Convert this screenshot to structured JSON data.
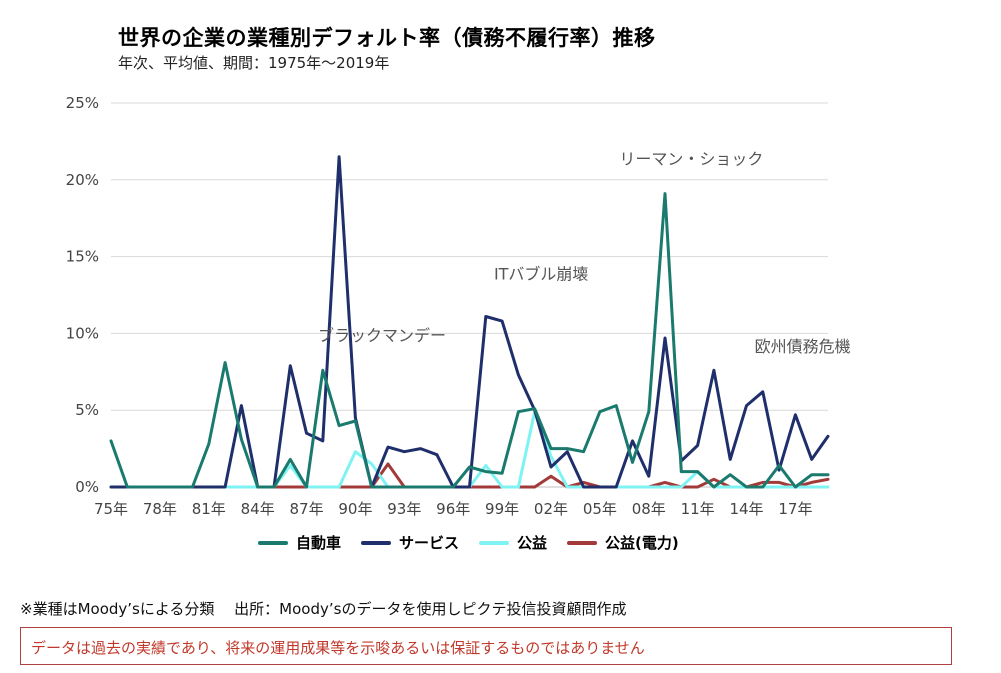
{
  "title": "世界の企業の業種別デフォルト率（債務不履行率）推移",
  "subtitle": "年次、平均値、期間：1975年～2019年",
  "note": "※業種はMoody’sによる分類　 出所：Moody’sのデータを使用しピクテ投信投資顧問作成",
  "disclaimer": "データは過去の実績であり、将来の運用成果等を示唆あるいは保証するものではありません",
  "colors": {
    "automotive": "#1a7a6e",
    "services": "#1f2f6b",
    "utilities": "#7ff3f3",
    "utilities_power": "#a33a3a",
    "grid": "#d9d9d9",
    "axis_text": "#444444"
  },
  "chart_data": {
    "type": "line",
    "x": [
      1975,
      1976,
      1977,
      1978,
      1979,
      1980,
      1981,
      1982,
      1983,
      1984,
      1985,
      1986,
      1987,
      1988,
      1989,
      1990,
      1991,
      1992,
      1993,
      1994,
      1995,
      1996,
      1997,
      1998,
      1999,
      2000,
      2001,
      2002,
      2003,
      2004,
      2005,
      2006,
      2007,
      2008,
      2009,
      2010,
      2011,
      2012,
      2013,
      2014,
      2015,
      2016,
      2017,
      2018,
      2019
    ],
    "x_ticks": [
      "75年",
      "78年",
      "81年",
      "84年",
      "87年",
      "90年",
      "93年",
      "96年",
      "99年",
      "02年",
      "05年",
      "08年",
      "11年",
      "14年",
      "17年"
    ],
    "y_ticks": [
      "0%",
      "5%",
      "10%",
      "15%",
      "20%",
      "25%"
    ],
    "ylim": [
      0,
      25
    ],
    "grid": true,
    "legend_position": "bottom",
    "series": [
      {
        "name": "自動車",
        "key": "automotive",
        "values": [
          3.0,
          0,
          0,
          0,
          0,
          0,
          2.8,
          8.1,
          3.1,
          0,
          0,
          1.8,
          0,
          7.6,
          4.0,
          4.3,
          0,
          0,
          0,
          0,
          0,
          0,
          1.3,
          1.0,
          0.9,
          4.9,
          5.1,
          2.5,
          2.5,
          2.3,
          4.9,
          5.3,
          1.6,
          4.9,
          19.1,
          1.0,
          1.0,
          0,
          0.8,
          0,
          0,
          1.4,
          0,
          0.8,
          0.8
        ]
      },
      {
        "name": "サービス",
        "key": "services",
        "values": [
          0,
          0,
          0,
          0,
          0,
          0,
          0,
          0,
          5.3,
          0,
          0,
          7.9,
          3.5,
          3.0,
          21.5,
          4.5,
          0,
          2.6,
          2.3,
          2.5,
          2.1,
          0,
          0,
          11.1,
          10.8,
          7.3,
          5.0,
          1.3,
          2.3,
          0,
          0,
          0,
          3.0,
          0.7,
          9.7,
          1.7,
          2.7,
          7.6,
          1.8,
          5.3,
          6.2,
          1.1,
          4.7,
          1.8,
          3.3
        ]
      },
      {
        "name": "公益",
        "key": "utilities",
        "values": [
          0,
          0,
          0,
          0,
          0,
          0,
          0,
          0,
          0,
          0,
          0,
          1.4,
          0,
          0,
          0,
          2.3,
          1.5,
          0,
          0,
          0,
          0,
          0,
          0,
          1.4,
          0,
          0,
          4.9,
          2.0,
          0,
          0,
          0,
          0,
          0,
          0,
          0,
          0,
          1.0,
          0,
          0,
          0,
          0,
          0,
          0,
          0,
          0
        ]
      },
      {
        "name": "公益(電力)",
        "key": "utilities_power",
        "values": [
          0,
          0,
          0,
          0,
          0,
          0,
          0,
          0,
          0,
          0,
          0,
          0,
          0,
          0,
          0,
          0,
          0,
          1.5,
          0,
          0,
          0,
          0,
          0,
          0,
          0,
          0,
          0,
          0.7,
          0,
          0.3,
          0,
          0,
          0,
          0,
          0.3,
          0,
          0,
          0.5,
          0,
          0,
          0.3,
          0.3,
          0,
          0.3,
          0.5
        ]
      }
    ],
    "annotations": [
      {
        "text": "ブラックマンデー",
        "year": 1987.7,
        "value": 9.5
      },
      {
        "text": "ITバブル崩壊",
        "year": 1998.5,
        "value": 13.5
      },
      {
        "text": "リーマン・ショック",
        "year": 2006.2,
        "value": 21.0
      },
      {
        "text": "欧州債務危機",
        "year": 2014.5,
        "value": 8.8
      }
    ]
  }
}
